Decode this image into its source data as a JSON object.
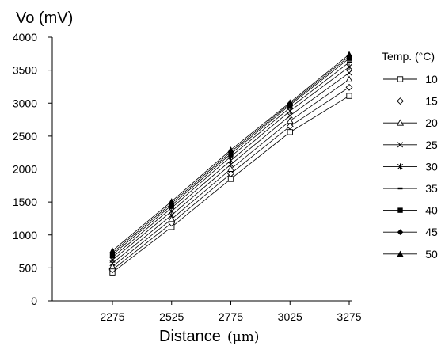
{
  "chart_data": {
    "type": "line",
    "ylabel": "Vo (mV)",
    "xlabel": "Distance",
    "xlabel_unit": "(μm)",
    "x": [
      2275,
      2525,
      2775,
      3025,
      3275
    ],
    "xticks": [
      "2275",
      "2525",
      "2775",
      "3025",
      "3275"
    ],
    "ylim": [
      0,
      4000
    ],
    "yticks": [
      "0",
      "500",
      "1000",
      "1500",
      "2000",
      "2500",
      "3000",
      "3500",
      "4000"
    ],
    "grid": false,
    "legend_title": "Temp. (°C)",
    "legend_position": "right",
    "line_color": "#000000",
    "series": [
      {
        "name": "10",
        "marker": "square-open",
        "values": [
          430,
          1120,
          1850,
          2560,
          3110
        ]
      },
      {
        "name": "15",
        "marker": "diamond-open",
        "values": [
          470,
          1180,
          1930,
          2650,
          3240
        ]
      },
      {
        "name": "20",
        "marker": "triangle-open",
        "values": [
          520,
          1240,
          2000,
          2730,
          3360
        ]
      },
      {
        "name": "25",
        "marker": "x",
        "values": [
          570,
          1300,
          2070,
          2810,
          3460
        ]
      },
      {
        "name": "30",
        "marker": "asterisk",
        "values": [
          620,
          1360,
          2130,
          2880,
          3550
        ]
      },
      {
        "name": "35",
        "marker": "dash",
        "values": [
          660,
          1410,
          2190,
          2930,
          3620
        ]
      },
      {
        "name": "40",
        "marker": "square-filled",
        "values": [
          700,
          1450,
          2230,
          2970,
          3680
        ]
      },
      {
        "name": "45",
        "marker": "diamond-filled",
        "values": [
          730,
          1480,
          2260,
          2990,
          3710
        ]
      },
      {
        "name": "50",
        "marker": "triangle-filled",
        "values": [
          760,
          1510,
          2290,
          3010,
          3740
        ]
      }
    ]
  }
}
